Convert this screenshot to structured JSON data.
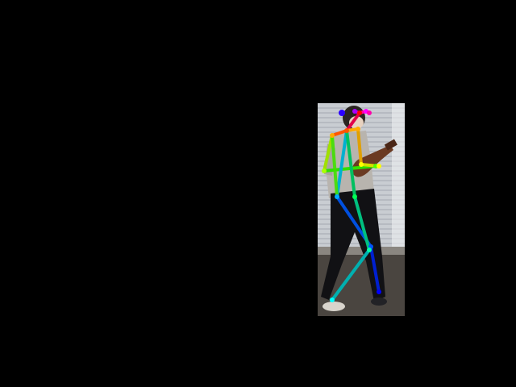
{
  "scene": {
    "background_color": "#000000",
    "photo_description_icon": "person-walking-with-guitar",
    "overlay": "pose-skeleton"
  },
  "colors": {
    "blinds": "#c9cdd2",
    "floor": "#4a4540",
    "shirt": "#b8b4ae",
    "pants": "#111114",
    "guitar": "#6b3a22",
    "skin": "#e8d2c0"
  },
  "pose": {
    "joint_names": [
      "nose",
      "neck",
      "r_shoulder",
      "r_elbow",
      "r_wrist",
      "l_shoulder",
      "l_elbow",
      "l_wrist",
      "r_hip",
      "r_knee",
      "r_ankle",
      "l_hip",
      "l_knee",
      "l_ankle",
      "r_eye",
      "l_eye",
      "r_ear",
      "l_ear"
    ]
  }
}
